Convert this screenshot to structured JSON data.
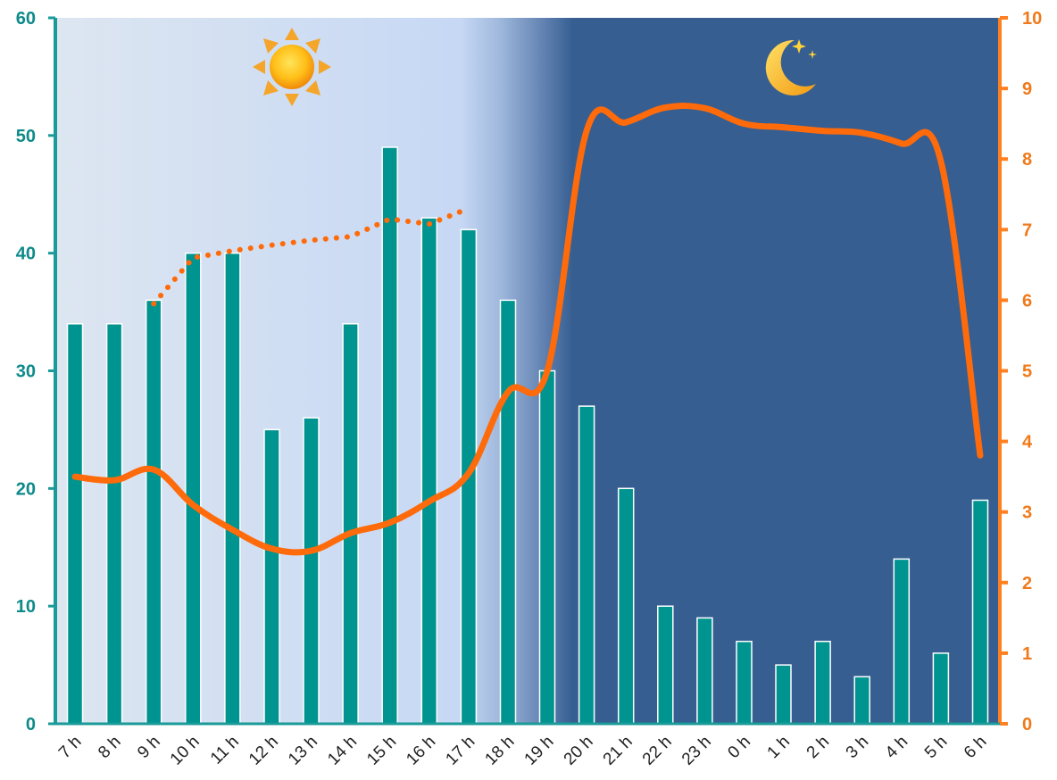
{
  "chart_data": {
    "type": "bar+line",
    "categories": [
      "7 h",
      "8 h",
      "9 h",
      "10 h",
      "11 h",
      "12 h",
      "13 h",
      "14 h",
      "15 h",
      "16 h",
      "17 h",
      "18 h",
      "19 h",
      "20 h",
      "21 h",
      "22 h",
      "23 h",
      "0 h",
      "1 h",
      "2 h",
      "3 h",
      "4 h",
      "5 h",
      "6 h"
    ],
    "series": [
      {
        "kind": "bar",
        "axis": "left",
        "values": [
          34,
          34,
          36,
          40,
          40,
          25,
          26,
          34,
          49,
          43,
          42,
          36,
          30,
          27,
          20,
          10,
          9,
          7,
          5,
          7,
          4,
          14,
          6,
          19
        ]
      },
      {
        "kind": "line",
        "axis": "right",
        "values": [
          3.5,
          3.45,
          3.6,
          3.1,
          2.75,
          2.48,
          2.45,
          2.7,
          2.85,
          3.15,
          3.55,
          4.7,
          5.0,
          8.4,
          8.52,
          8.73,
          8.72,
          8.5,
          8.45,
          8.4,
          8.37,
          8.22,
          7.97,
          3.8
        ]
      },
      {
        "kind": "dotted-line",
        "axis": "right",
        "values": [
          null,
          null,
          5.95,
          6.6,
          6.7,
          6.78,
          6.85,
          6.9,
          7.15,
          7.08,
          7.3,
          null,
          null,
          null,
          null,
          null,
          null,
          null,
          null,
          null,
          null,
          null,
          null,
          null
        ]
      }
    ],
    "left_axis": {
      "ylim": [
        0,
        60
      ],
      "ticks": [
        0,
        10,
        20,
        30,
        40,
        50,
        60
      ]
    },
    "right_axis": {
      "ylim": [
        0,
        10
      ],
      "ticks": [
        0,
        1,
        2,
        3,
        4,
        5,
        6,
        7,
        8,
        9,
        10
      ]
    },
    "background": {
      "day": "7 h – 17 h",
      "transition": "17 h – 19 h",
      "night": "19 h – 6 h"
    },
    "icons": {
      "day": "sun-icon",
      "night": "moon-stars-icon"
    },
    "colors": {
      "bars": "#009490",
      "line": "#ff6a0a",
      "left_axis": "#1a9a98",
      "right_axis": "#ff8020",
      "day_bg_start": "#dde6f1",
      "day_bg_end": "#c7d9f4",
      "night_bg": "#365e91"
    }
  }
}
